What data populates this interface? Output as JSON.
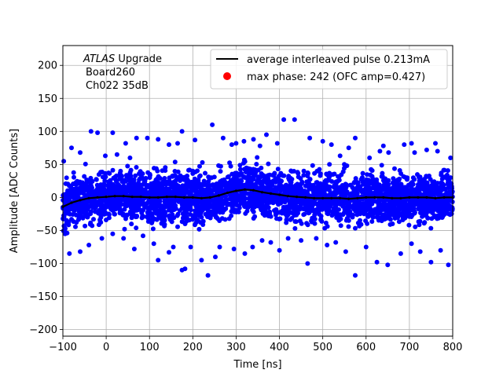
{
  "chart_data": {
    "type": "scatter",
    "title": "",
    "xlabel": "Time [ns]",
    "ylabel": "Amplitude [ADC Counts]",
    "xlim": [
      -100,
      800
    ],
    "ylim": [
      -210,
      230
    ],
    "x_ticks": [
      -100,
      0,
      100,
      200,
      300,
      400,
      500,
      600,
      700,
      800
    ],
    "y_ticks": [
      -200,
      -150,
      -100,
      -50,
      0,
      50,
      100,
      150,
      200
    ],
    "x_tick_labels": [
      "−100",
      "0",
      "100",
      "200",
      "300",
      "400",
      "500",
      "600",
      "700",
      "800"
    ],
    "y_tick_labels": [
      "−200",
      "−150",
      "−100",
      "−50",
      "0",
      "50",
      "100",
      "150",
      "200"
    ],
    "grid": true,
    "legend_position": "top-right",
    "annotation": {
      "experiment_italic": "ATLAS",
      "experiment_rest": " Upgrade",
      "board": "Board260",
      "channel": "Ch022 35dB"
    },
    "series": [
      {
        "name": "average interleaved pulse 0.213mA",
        "kind": "line",
        "color": "#000000",
        "x": [
          -100,
          -80,
          -60,
          -40,
          -20,
          0,
          20,
          40,
          60,
          80,
          100,
          120,
          140,
          160,
          180,
          200,
          220,
          240,
          260,
          280,
          300,
          320,
          340,
          360,
          380,
          400,
          420,
          440,
          460,
          480,
          500,
          520,
          540,
          560,
          580,
          600,
          620,
          640,
          660,
          680,
          700,
          720,
          740,
          760,
          780,
          800
        ],
        "y": [
          -14,
          -8,
          -4,
          -1,
          0,
          1,
          2,
          2,
          1,
          1,
          0,
          0,
          1,
          1,
          0,
          0,
          -1,
          0,
          3,
          7,
          10,
          12,
          11,
          8,
          6,
          4,
          2,
          1,
          0,
          -1,
          -1,
          -1,
          -1,
          -2,
          -1,
          0,
          0,
          0,
          -1,
          -1,
          0,
          0,
          0,
          -1,
          0,
          0
        ]
      },
      {
        "name": "scatter samples",
        "kind": "scatter",
        "color": "#0000ff",
        "center_noise_sd": 18,
        "x_range": [
          -100,
          800
        ],
        "approximate_count": 3500
      },
      {
        "name": "max phase: 242 (OFC amp=0.427)",
        "kind": "marker",
        "color": "#ff0000"
      }
    ],
    "outliers": [
      [
        -98,
        55
      ],
      [
        -80,
        75
      ],
      [
        -60,
        68
      ],
      [
        -35,
        100
      ],
      [
        -20,
        98
      ],
      [
        -2,
        63
      ],
      [
        25,
        65
      ],
      [
        55,
        60
      ],
      [
        70,
        90
      ],
      [
        95,
        90
      ],
      [
        120,
        88
      ],
      [
        145,
        80
      ],
      [
        175,
        100
      ],
      [
        205,
        87
      ],
      [
        245,
        110
      ],
      [
        270,
        90
      ],
      [
        290,
        80
      ],
      [
        318,
        85
      ],
      [
        340,
        88
      ],
      [
        355,
        78
      ],
      [
        370,
        95
      ],
      [
        410,
        118
      ],
      [
        470,
        90
      ],
      [
        520,
        80
      ],
      [
        540,
        63
      ],
      [
        575,
        90
      ],
      [
        608,
        60
      ],
      [
        632,
        70
      ],
      [
        652,
        68
      ],
      [
        688,
        80
      ],
      [
        712,
        68
      ],
      [
        740,
        72
      ],
      [
        765,
        70
      ],
      [
        795,
        60
      ],
      [
        -95,
        -55
      ],
      [
        -85,
        -85
      ],
      [
        -60,
        -82
      ],
      [
        -40,
        -72
      ],
      [
        -10,
        -62
      ],
      [
        15,
        -55
      ],
      [
        40,
        -62
      ],
      [
        65,
        -78
      ],
      [
        85,
        -58
      ],
      [
        110,
        -70
      ],
      [
        120,
        -95
      ],
      [
        145,
        -83
      ],
      [
        155,
        -75
      ],
      [
        175,
        -110
      ],
      [
        182,
        -108
      ],
      [
        195,
        -75
      ],
      [
        220,
        -95
      ],
      [
        235,
        -118
      ],
      [
        252,
        -90
      ],
      [
        262,
        -75
      ],
      [
        295,
        -78
      ],
      [
        320,
        -85
      ],
      [
        338,
        -75
      ],
      [
        360,
        -65
      ],
      [
        380,
        -68
      ],
      [
        400,
        -80
      ],
      [
        420,
        -62
      ],
      [
        450,
        -65
      ],
      [
        465,
        -100
      ],
      [
        485,
        -62
      ],
      [
        510,
        -72
      ],
      [
        530,
        -68
      ],
      [
        553,
        -82
      ],
      [
        575,
        -118
      ],
      [
        600,
        -75
      ],
      [
        625,
        -98
      ],
      [
        650,
        -102
      ],
      [
        680,
        -85
      ],
      [
        705,
        -70
      ],
      [
        725,
        -82
      ],
      [
        750,
        -98
      ],
      [
        772,
        -80
      ],
      [
        790,
        -102
      ],
      [
        15,
        98
      ],
      [
        45,
        82
      ],
      [
        165,
        82
      ],
      [
        300,
        82
      ],
      [
        395,
        82
      ],
      [
        435,
        118
      ],
      [
        500,
        85
      ],
      [
        560,
        75
      ],
      [
        640,
        78
      ],
      [
        705,
        82
      ],
      [
        760,
        82
      ]
    ]
  }
}
